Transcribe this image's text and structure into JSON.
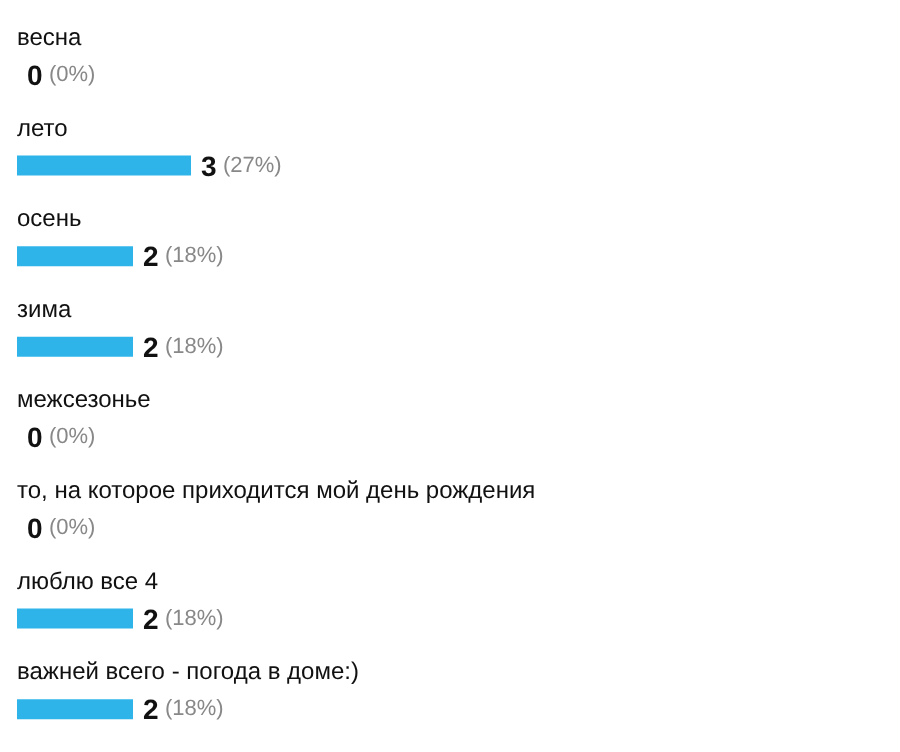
{
  "chart_data": {
    "type": "bar",
    "orientation": "horizontal",
    "categories": [
      "весна",
      "лето",
      "осень",
      "зима",
      "межсезонье",
      "то, на которое приходится мой день рождения",
      "люблю все 4",
      "важней всего - погода в доме:)"
    ],
    "values": [
      0,
      3,
      2,
      2,
      0,
      0,
      2,
      2
    ],
    "value_labels": [
      "0 (0%)",
      "3 (27%)",
      "2 (18%)",
      "2 (18%)",
      "0 (0%)",
      "0 (0%)",
      "2 (18%)",
      "2 (18%)"
    ],
    "color": "#2fb4ea",
    "grid": false
  }
}
